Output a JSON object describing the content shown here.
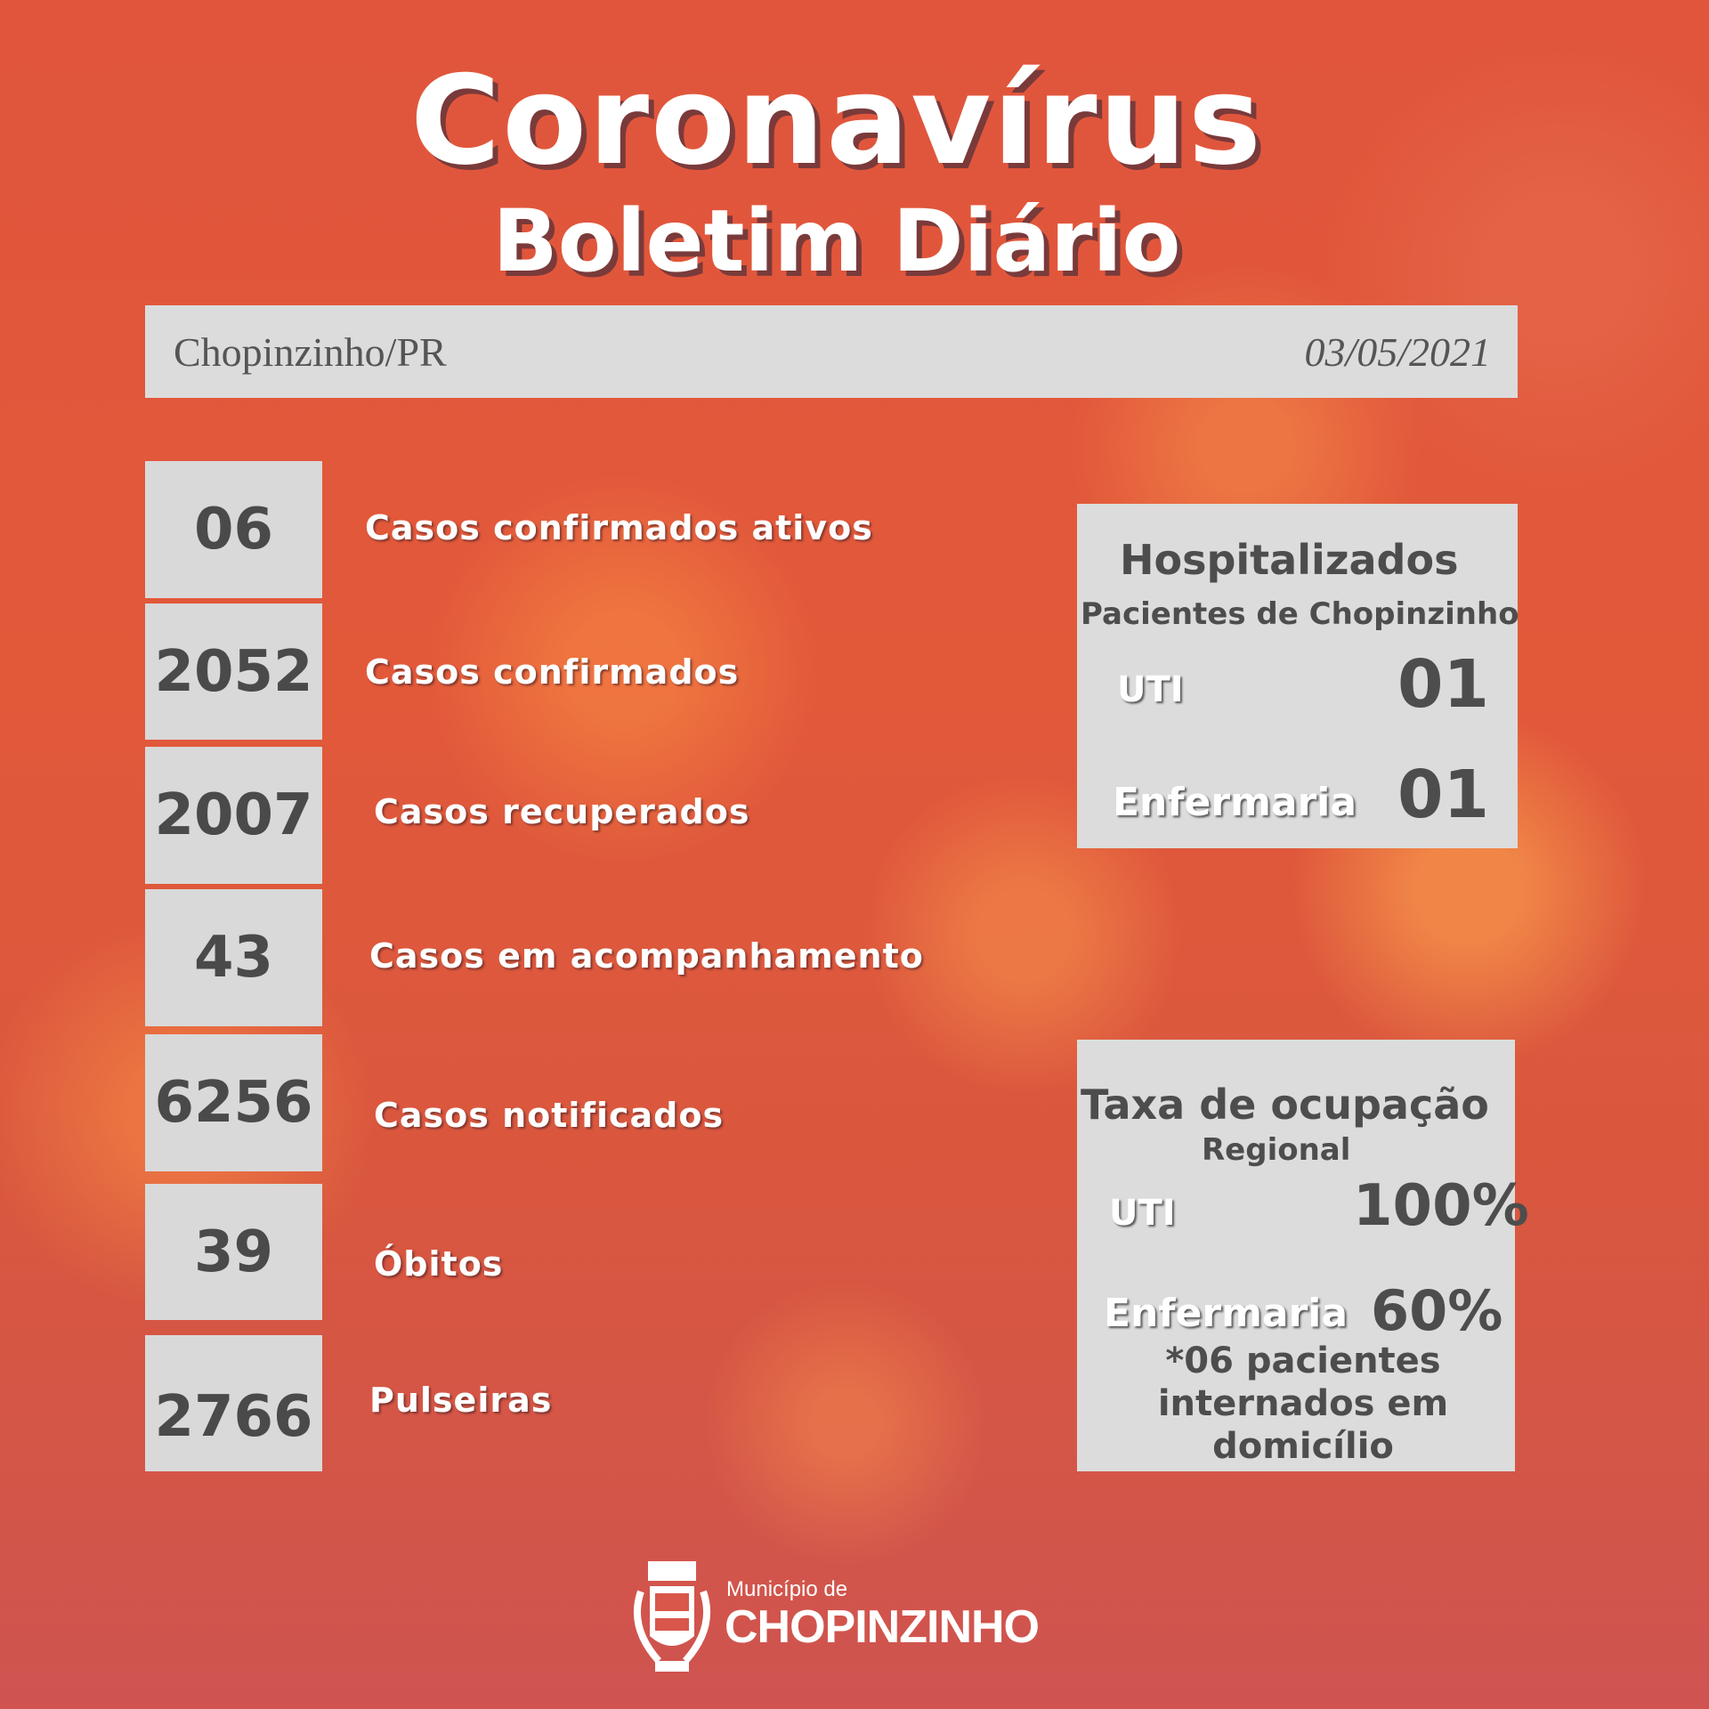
{
  "title": "Coronavírus",
  "subtitle": "Boletim Diário",
  "header": {
    "city": "Chopinzinho/PR",
    "date": "03/05/2021"
  },
  "stats": [
    {
      "value": "06",
      "label": "Casos confirmados ativos"
    },
    {
      "value": "2052",
      "label": "Casos confirmados"
    },
    {
      "value": "2007",
      "label": "Casos recuperados"
    },
    {
      "value": "43",
      "label": "Casos em acompanhamento"
    },
    {
      "value": "6256",
      "label": "Casos notificados"
    },
    {
      "value": "39",
      "label": "Óbitos"
    },
    {
      "value": "2766",
      "label": "Pulseiras"
    }
  ],
  "hospitalizados": {
    "title": "Hospitalizados",
    "subtitle": "Pacientes de Chopinzinho",
    "uti_label": "UTI",
    "uti_value": "01",
    "enf_label": "Enfermaria",
    "enf_value": "01"
  },
  "taxa": {
    "title": "Taxa de ocupação",
    "subtitle": "Regional",
    "uti_label": "UTI",
    "uti_value": "100%",
    "enf_label": "Enfermaria",
    "enf_value": "60%",
    "note1": "*06 pacientes",
    "note2": "internados em",
    "note3": "domicílio"
  },
  "logo": {
    "line1": "Município de",
    "line2": "CHOPINZINHO"
  },
  "colors": {
    "background": "#e0553c",
    "box": "#dcdcdc",
    "number_text": "#4a4a4a"
  }
}
